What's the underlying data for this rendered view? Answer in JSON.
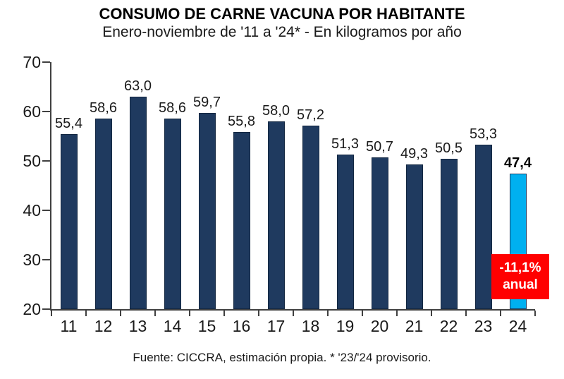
{
  "chart_data": {
    "type": "bar",
    "title": "CONSUMO DE CARNE VACUNA POR HABITANTE",
    "subtitle": "Enero-noviembre de '11 a '24* - En kilogramos por año",
    "source": "Fuente: CICCRA, estimación propia. * '23/'24 provisorio.",
    "xlabel": "",
    "ylabel": "",
    "categories": [
      "11",
      "12",
      "13",
      "14",
      "15",
      "16",
      "17",
      "18",
      "19",
      "20",
      "21",
      "22",
      "23",
      "24"
    ],
    "values": [
      55.4,
      58.6,
      63.0,
      58.6,
      59.7,
      55.8,
      58.0,
      57.2,
      51.3,
      50.7,
      49.3,
      50.5,
      53.3,
      47.4
    ],
    "value_labels": [
      "55,4",
      "58,6",
      "63,0",
      "58,6",
      "59,7",
      "55,8",
      "58,0",
      "57,2",
      "51,3",
      "50,7",
      "49,3",
      "50,5",
      "53,3",
      "47,4"
    ],
    "highlight_index": 13,
    "ylim": [
      20,
      70
    ],
    "y_ticks": [
      70,
      60,
      50,
      40,
      30,
      20
    ],
    "grid": false,
    "legend": "none",
    "annotation": {
      "line1": "-11,1%",
      "line2": "anual"
    },
    "colors": {
      "bar": "#1f3a5f",
      "bar_border": "#132741",
      "highlight": "#00b0f0",
      "highlight_border": "#1f3a5f",
      "badge_bg": "#ff0000",
      "badge_text": "#ffffff"
    }
  }
}
